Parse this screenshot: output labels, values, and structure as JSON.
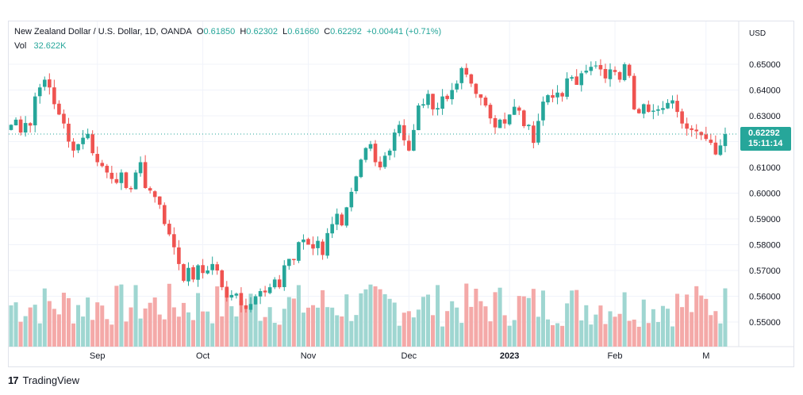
{
  "legend": {
    "title": "New Zealand Dollar / U.S. Dollar, 1D, OANDA",
    "open_key": "O",
    "open": "0.61850",
    "high_key": "H",
    "high": "0.62302",
    "low_key": "L",
    "low": "0.61660",
    "close_key": "C",
    "close": "0.62292",
    "change": "+0.00441 (+0.71%)",
    "vol_label": "Vol",
    "vol": "32.622K"
  },
  "price_tag": {
    "price": "0.62292",
    "countdown": "15:11:14"
  },
  "footer": {
    "logo": "17",
    "brand": "TradingView"
  },
  "colors": {
    "up": "#26a69a",
    "down": "#ef5350",
    "vol_up": "#9fd6d1",
    "vol_down": "#f4a9a8",
    "grid": "#f0f3fa",
    "axis_text": "#131722"
  },
  "chart_data": {
    "type": "candlestick",
    "symbol": "NZDUSD",
    "interval": "1D",
    "currency_label": "USD",
    "y_ticks": [
      0.65,
      0.64,
      0.63,
      0.62,
      0.61,
      0.6,
      0.59,
      0.58,
      0.57,
      0.56,
      0.55
    ],
    "y_tick_labels": [
      "0.65000",
      "0.64000",
      "0.63000",
      "0.62000",
      "0.61000",
      "0.60000",
      "0.59000",
      "0.58000",
      "0.57000",
      "0.56000",
      "0.55000"
    ],
    "x_labels": [
      {
        "label": "Sep",
        "index": 18
      },
      {
        "label": "Oct",
        "index": 40
      },
      {
        "label": "Nov",
        "index": 62
      },
      {
        "label": "Dec",
        "index": 83
      },
      {
        "label": "2023",
        "index": 104
      },
      {
        "label": "Feb",
        "index": 126
      },
      {
        "label": "M",
        "index": 145
      }
    ],
    "last_price": 0.62292,
    "closes": [
      0.6265,
      0.6285,
      0.6235,
      0.6272,
      0.6262,
      0.6375,
      0.641,
      0.644,
      0.641,
      0.6345,
      0.6305,
      0.627,
      0.62,
      0.6165,
      0.619,
      0.6215,
      0.623,
      0.6155,
      0.612,
      0.6105,
      0.608,
      0.6055,
      0.604,
      0.608,
      0.602,
      0.6015,
      0.608,
      0.612,
      0.602,
      0.601,
      0.5985,
      0.5955,
      0.588,
      0.584,
      0.579,
      0.5725,
      0.566,
      0.571,
      0.5665,
      0.572,
      0.569,
      0.57,
      0.5725,
      0.57,
      0.5635,
      0.5595,
      0.5605,
      0.561,
      0.5565,
      0.555,
      0.557,
      0.56,
      0.562,
      0.5615,
      0.5635,
      0.5665,
      0.5635,
      0.572,
      0.5745,
      0.574,
      0.581,
      0.582,
      0.58,
      0.5785,
      0.5815,
      0.576,
      0.5845,
      0.588,
      0.592,
      0.5875,
      0.5945,
      0.6005,
      0.6065,
      0.613,
      0.6175,
      0.619,
      0.612,
      0.61,
      0.6145,
      0.6165,
      0.6235,
      0.6265,
      0.6205,
      0.6165,
      0.6245,
      0.634,
      0.6345,
      0.6385,
      0.6325,
      0.633,
      0.6375,
      0.6365,
      0.64,
      0.6425,
      0.6485,
      0.646,
      0.6425,
      0.6385,
      0.637,
      0.634,
      0.629,
      0.6255,
      0.6285,
      0.627,
      0.6305,
      0.6335,
      0.632,
      0.626,
      0.6265,
      0.6195,
      0.628,
      0.6355,
      0.638,
      0.637,
      0.639,
      0.6375,
      0.6445,
      0.645,
      0.642,
      0.6465,
      0.6475,
      0.649,
      0.6495,
      0.648,
      0.6445,
      0.648,
      0.647,
      0.644,
      0.65,
      0.6455,
      0.6325,
      0.631,
      0.6345,
      0.6315,
      0.632,
      0.6325,
      0.633,
      0.635,
      0.636,
      0.6315,
      0.627,
      0.625,
      0.6245,
      0.624,
      0.6225,
      0.621,
      0.6195,
      0.615,
      0.6185,
      0.6229
    ]
  }
}
